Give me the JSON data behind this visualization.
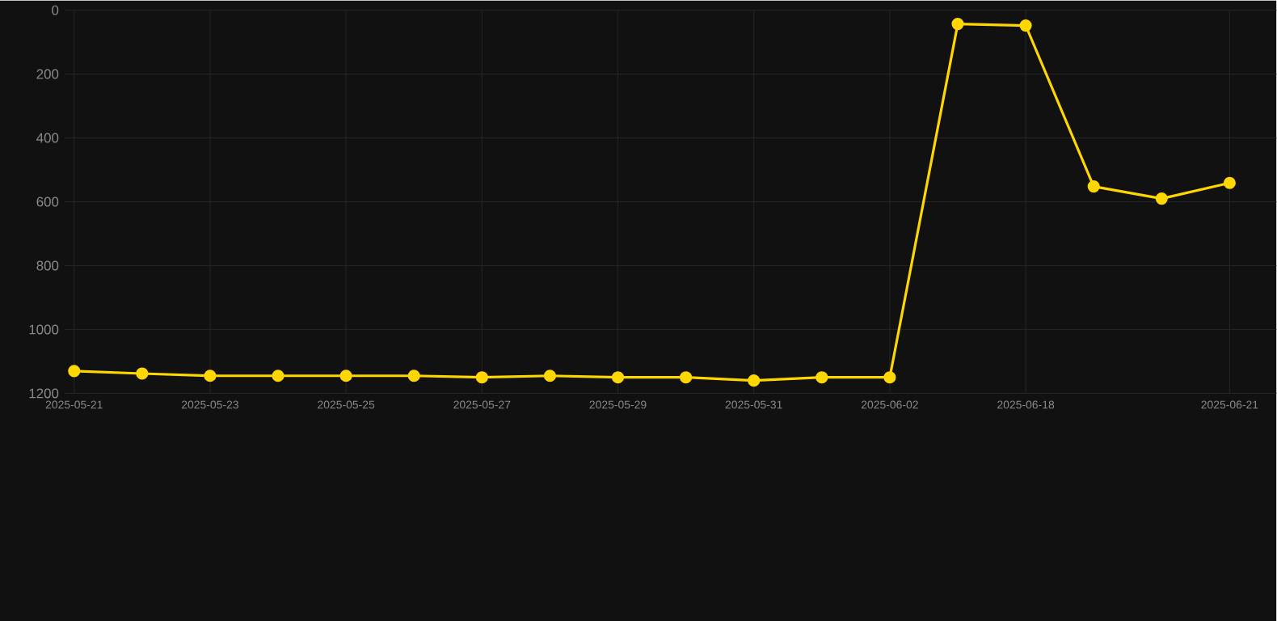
{
  "chart_data": {
    "type": "line",
    "categories": [
      "2025-05-21",
      null,
      "2025-05-23",
      null,
      "2025-05-25",
      null,
      "2025-05-27",
      null,
      "2025-05-29",
      null,
      "2025-05-31",
      null,
      "2025-06-02",
      null,
      "2025-06-18",
      null,
      null,
      "2025-06-21"
    ],
    "series": [
      {
        "color": "#ffd700",
        "values": [
          1130,
          1138,
          1145,
          1145,
          1145,
          1145,
          1150,
          1145,
          1150,
          1150,
          1160,
          1150,
          1150,
          43,
          48,
          552,
          590,
          541
        ]
      }
    ],
    "ylim": [
      1200,
      0
    ],
    "yticks": [
      0,
      200,
      400,
      600,
      800,
      1000,
      1200
    ],
    "grid": true,
    "marker": "circle",
    "line_style": "solid",
    "legend": false
  }
}
